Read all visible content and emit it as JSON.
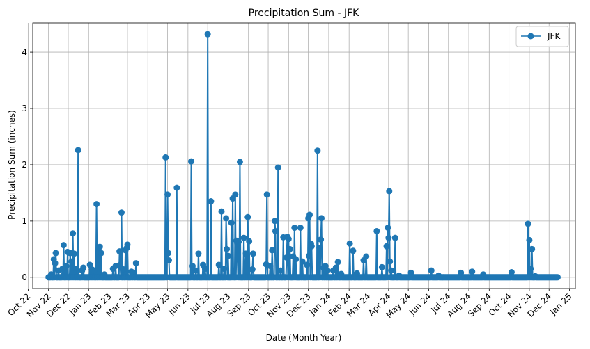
{
  "chart_data": {
    "type": "line",
    "title": "Precipitation Sum - JFK",
    "xlabel": "Date (Month Year)",
    "ylabel": "Precipitation Sum (inches)",
    "x_type": "date",
    "xlim": [
      "2022-10-08",
      "2025-01-10"
    ],
    "ylim": [
      -0.2,
      4.52
    ],
    "grid": true,
    "legend_position": "top-right",
    "x_ticks": [
      {
        "date": "2022-10-01",
        "label": "Oct 22"
      },
      {
        "date": "2022-11-01",
        "label": "Nov 22"
      },
      {
        "date": "2022-12-01",
        "label": "Dec 22"
      },
      {
        "date": "2023-01-01",
        "label": "Jan 23"
      },
      {
        "date": "2023-02-01",
        "label": "Feb 23"
      },
      {
        "date": "2023-03-01",
        "label": "Mar 23"
      },
      {
        "date": "2023-04-01",
        "label": "Apr 23"
      },
      {
        "date": "2023-05-01",
        "label": "May 23"
      },
      {
        "date": "2023-06-01",
        "label": "Jun 23"
      },
      {
        "date": "2023-07-01",
        "label": "Jul 23"
      },
      {
        "date": "2023-08-01",
        "label": "Aug 23"
      },
      {
        "date": "2023-09-01",
        "label": "Sep 23"
      },
      {
        "date": "2023-10-01",
        "label": "Oct 23"
      },
      {
        "date": "2023-11-01",
        "label": "Nov 23"
      },
      {
        "date": "2023-12-01",
        "label": "Dec 23"
      },
      {
        "date": "2024-01-01",
        "label": "Jan 24"
      },
      {
        "date": "2024-02-01",
        "label": "Feb 24"
      },
      {
        "date": "2024-03-01",
        "label": "Mar 24"
      },
      {
        "date": "2024-04-01",
        "label": "Apr 24"
      },
      {
        "date": "2024-05-01",
        "label": "May 24"
      },
      {
        "date": "2024-06-01",
        "label": "Jun 24"
      },
      {
        "date": "2024-07-01",
        "label": "Jul 24"
      },
      {
        "date": "2024-08-01",
        "label": "Aug 24"
      },
      {
        "date": "2024-09-01",
        "label": "Sep 24"
      },
      {
        "date": "2024-10-01",
        "label": "Oct 24"
      },
      {
        "date": "2024-11-01",
        "label": "Nov 24"
      },
      {
        "date": "2024-12-01",
        "label": "Dec 24"
      },
      {
        "date": "2025-01-01",
        "label": "Jan 25"
      }
    ],
    "y_ticks": [
      0,
      1,
      2,
      3,
      4
    ],
    "series": [
      {
        "name": "JFK",
        "color": "#1f77b4",
        "marker": "circle",
        "start_date": "2022-11-01",
        "end_date": "2024-12-14",
        "default_value": 0,
        "points": [
          [
            "2022-11-05",
            0.05
          ],
          [
            "2022-11-09",
            0.32
          ],
          [
            "2022-11-11",
            0.25
          ],
          [
            "2022-11-12",
            0.43
          ],
          [
            "2022-11-16",
            0.12
          ],
          [
            "2022-11-22",
            0.15
          ],
          [
            "2022-11-24",
            0.57
          ],
          [
            "2022-11-28",
            0.2
          ],
          [
            "2022-11-30",
            0.45
          ],
          [
            "2022-12-04",
            0.43
          ],
          [
            "2022-12-06",
            0.28
          ],
          [
            "2022-12-08",
            0.78
          ],
          [
            "2022-12-10",
            0.42
          ],
          [
            "2022-12-13",
            0.15
          ],
          [
            "2022-12-16",
            2.26
          ],
          [
            "2022-12-22",
            0.12
          ],
          [
            "2022-12-24",
            0.17
          ],
          [
            "2023-01-03",
            0.22
          ],
          [
            "2023-01-06",
            0.14
          ],
          [
            "2023-01-09",
            0.12
          ],
          [
            "2023-01-13",
            1.3
          ],
          [
            "2023-01-16",
            0.45
          ],
          [
            "2023-01-18",
            0.54
          ],
          [
            "2023-01-20",
            0.43
          ],
          [
            "2023-01-25",
            0.05
          ],
          [
            "2023-02-07",
            0.15
          ],
          [
            "2023-02-11",
            0.2
          ],
          [
            "2023-02-17",
            0.46
          ],
          [
            "2023-02-18",
            0.22
          ],
          [
            "2023-02-20",
            1.15
          ],
          [
            "2023-02-23",
            0.14
          ],
          [
            "2023-02-26",
            0.48
          ],
          [
            "2023-02-28",
            0.52
          ],
          [
            "2023-03-01",
            0.58
          ],
          [
            "2023-03-07",
            0.1
          ],
          [
            "2023-03-10",
            0.08
          ],
          [
            "2023-03-14",
            0.25
          ],
          [
            "2023-04-28",
            2.13
          ],
          [
            "2023-05-01",
            1.47
          ],
          [
            "2023-05-02",
            0.43
          ],
          [
            "2023-05-03",
            0.3
          ],
          [
            "2023-05-15",
            1.59
          ],
          [
            "2023-06-06",
            2.06
          ],
          [
            "2023-06-08",
            0.2
          ],
          [
            "2023-06-13",
            0.12
          ],
          [
            "2023-06-17",
            0.42
          ],
          [
            "2023-06-24",
            0.22
          ],
          [
            "2023-06-27",
            0.15
          ],
          [
            "2023-07-01",
            4.32
          ],
          [
            "2023-07-06",
            1.35
          ],
          [
            "2023-07-18",
            0.22
          ],
          [
            "2023-07-22",
            1.17
          ],
          [
            "2023-07-26",
            0.15
          ],
          [
            "2023-07-29",
            1.05
          ],
          [
            "2023-07-30",
            0.5
          ],
          [
            "2023-08-01",
            0.38
          ],
          [
            "2023-08-06",
            0.97
          ],
          [
            "2023-08-08",
            1.4
          ],
          [
            "2023-08-09",
            0.12
          ],
          [
            "2023-08-12",
            1.47
          ],
          [
            "2023-08-14",
            0.65
          ],
          [
            "2023-08-15",
            0.6
          ],
          [
            "2023-08-17",
            0.63
          ],
          [
            "2023-08-19",
            2.05
          ],
          [
            "2023-08-25",
            0.7
          ],
          [
            "2023-08-28",
            0.42
          ],
          [
            "2023-08-31",
            1.07
          ],
          [
            "2023-09-02",
            0.64
          ],
          [
            "2023-09-07",
            0.14
          ],
          [
            "2023-09-08",
            0.42
          ],
          [
            "2023-09-28",
            0.23
          ],
          [
            "2023-09-29",
            1.47
          ],
          [
            "2023-10-04",
            0.2
          ],
          [
            "2023-10-07",
            0.48
          ],
          [
            "2023-10-11",
            1.0
          ],
          [
            "2023-10-12",
            0.82
          ],
          [
            "2023-10-16",
            1.95
          ],
          [
            "2023-10-20",
            0.12
          ],
          [
            "2023-10-24",
            0.71
          ],
          [
            "2023-10-29",
            0.35
          ],
          [
            "2023-10-30",
            0.72
          ],
          [
            "2023-11-01",
            0.68
          ],
          [
            "2023-11-03",
            0.5
          ],
          [
            "2023-11-08",
            0.37
          ],
          [
            "2023-11-10",
            0.88
          ],
          [
            "2023-11-12",
            0.32
          ],
          [
            "2023-11-19",
            0.88
          ],
          [
            "2023-11-22",
            0.28
          ],
          [
            "2023-11-29",
            0.22
          ],
          [
            "2023-12-01",
            1.05
          ],
          [
            "2023-12-02",
            0.38
          ],
          [
            "2023-12-03",
            1.11
          ],
          [
            "2023-12-05",
            0.6
          ],
          [
            "2023-12-06",
            0.55
          ],
          [
            "2023-12-15",
            2.25
          ],
          [
            "2023-12-18",
            0.52
          ],
          [
            "2023-12-20",
            0.67
          ],
          [
            "2023-12-21",
            1.05
          ],
          [
            "2023-12-24",
            0.17
          ],
          [
            "2023-12-27",
            0.2
          ],
          [
            "2023-12-30",
            0.12
          ],
          [
            "2024-01-08",
            0.12
          ],
          [
            "2024-01-12",
            0.17
          ],
          [
            "2024-01-15",
            0.27
          ],
          [
            "2024-01-20",
            0.06
          ],
          [
            "2024-02-02",
            0.6
          ],
          [
            "2024-02-07",
            0.47
          ],
          [
            "2024-02-13",
            0.07
          ],
          [
            "2024-02-23",
            0.3
          ],
          [
            "2024-02-27",
            0.37
          ],
          [
            "2024-03-14",
            0.82
          ],
          [
            "2024-03-22",
            0.18
          ],
          [
            "2024-03-29",
            0.55
          ],
          [
            "2024-03-31",
            0.88
          ],
          [
            "2024-04-01",
            0.7
          ],
          [
            "2024-04-02",
            1.53
          ],
          [
            "2024-04-03",
            0.28
          ],
          [
            "2024-04-05",
            0.12
          ],
          [
            "2024-04-11",
            0.7
          ],
          [
            "2024-04-17",
            0.03
          ],
          [
            "2024-05-05",
            0.08
          ],
          [
            "2024-06-05",
            0.12
          ],
          [
            "2024-06-16",
            0.03
          ],
          [
            "2024-07-20",
            0.08
          ],
          [
            "2024-08-06",
            0.1
          ],
          [
            "2024-08-23",
            0.05
          ],
          [
            "2024-10-05",
            0.09
          ],
          [
            "2024-10-30",
            0.95
          ],
          [
            "2024-11-01",
            0.66
          ],
          [
            "2024-11-03",
            0.15
          ],
          [
            "2024-11-05",
            0.5
          ],
          [
            "2024-11-10",
            0.02
          ]
        ]
      }
    ]
  }
}
